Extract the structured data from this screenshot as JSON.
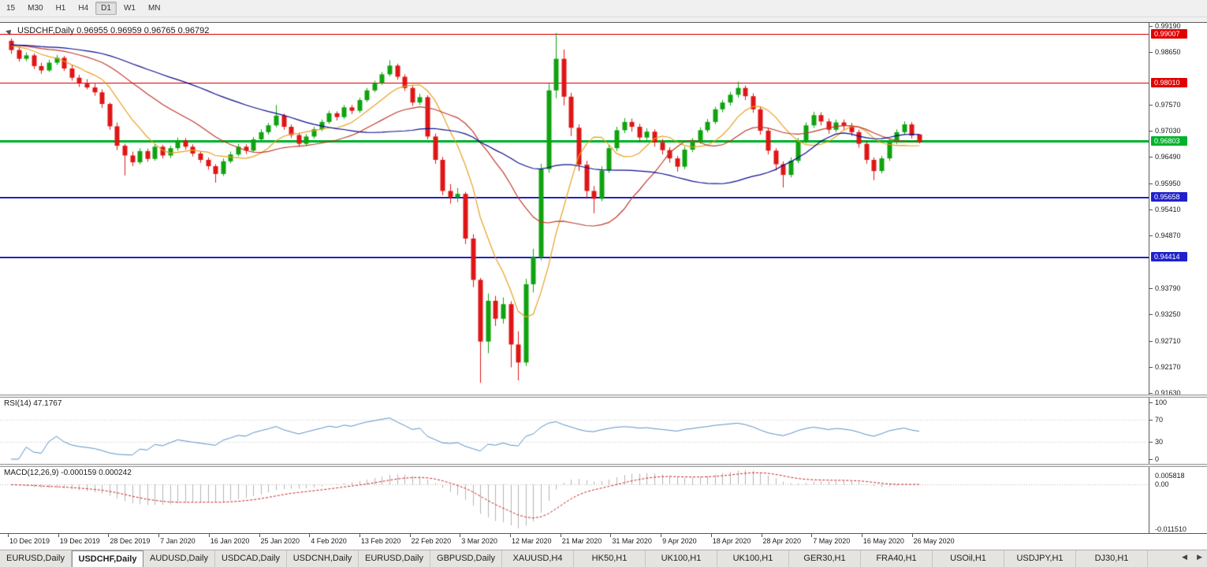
{
  "toolbar": {
    "timeframes": [
      "15",
      "M30",
      "H1",
      "H4",
      "D1",
      "W1",
      "MN"
    ],
    "active": "D1"
  },
  "chart": {
    "symbol_ohlc_label": "USDCHF,Daily 0.96955 0.96959 0.96765 0.96792"
  },
  "rsi_panel": {
    "label": "RSI(14) 47.1767",
    "axis_labels": [
      "100",
      "70",
      "30",
      "0"
    ],
    "guide_levels": [
      70,
      30
    ],
    "line_color": "#5a8fc8"
  },
  "macd_panel": {
    "label": "MACD(12,26,9) -0.000159 0.000242",
    "axis_top": "0.005818",
    "axis_zero": "0.00",
    "axis_bottom": "-0.011510",
    "histogram_color": "#b4b4b4",
    "signal_color": "#cc2020"
  },
  "tabs": {
    "items": [
      "EURUSD,Daily",
      "USDCHF,Daily",
      "AUDUSD,Daily",
      "USDCAD,Daily",
      "USDCNH,Daily",
      "EURUSD,Daily",
      "GBPUSD,Daily",
      "XAUUSD,H4",
      "HK50,H1",
      "UK100,H1",
      "UK100,H1",
      "GER30,H1",
      "FRA40,H1",
      "USOil,H1",
      "USDJPY,H1",
      "DJ30,H1"
    ],
    "active_index": 1,
    "scroll_left_icon": "◀",
    "scroll_right_icon": "▶"
  },
  "chart_data": {
    "type": "candlestick",
    "symbol": "USDCHF",
    "timeframe": "Daily",
    "last_ohlc": {
      "open": 0.96955,
      "high": 0.96959,
      "low": 0.96765,
      "close": 0.96792
    },
    "y_range": [
      0.916,
      0.9925
    ],
    "y_ticks": [
      "0.99190",
      "0.98650",
      "0.97570",
      "0.97030",
      "0.96490",
      "0.95950",
      "0.95410",
      "0.94870",
      "0.93790",
      "0.93250",
      "0.92710",
      "0.92170",
      "0.91630"
    ],
    "x_labels": [
      "10 Dec 2019",
      "19 Dec 2019",
      "28 Dec 2019",
      "7 Jan 2020",
      "16 Jan 2020",
      "25 Jan 2020",
      "4 Feb 2020",
      "13 Feb 2020",
      "22 Feb 2020",
      "3 Mar 2020",
      "12 Mar 2020",
      "21 Mar 2020",
      "31 Mar 2020",
      "9 Apr 2020",
      "18 Apr 2020",
      "28 Apr 2020",
      "7 May 2020",
      "16 May 2020",
      "26 May 2020"
    ],
    "horizontal_levels": [
      {
        "value": 0.99007,
        "label": "0.99007",
        "color": "#e00000",
        "width": 1
      },
      {
        "value": 0.9801,
        "label": "0.98010",
        "color": "#e00000",
        "width": 1
      },
      {
        "value": 0.96803,
        "label": "0.96803",
        "color": "#00b32c",
        "width": 3
      },
      {
        "value": 0.95658,
        "label": "0.95658",
        "color": "#2020cc",
        "width": 2
      },
      {
        "value": 0.94414,
        "label": "0.94414",
        "color": "#2020cc",
        "width": 2
      }
    ],
    "overlays": [
      {
        "name": "sma-fast",
        "period": 8,
        "color": "#e8a020"
      },
      {
        "name": "sma-mid",
        "period": 20,
        "color": "#c0392b"
      },
      {
        "name": "sma-slow",
        "period": 40,
        "color": "#0b0b8f"
      }
    ],
    "indicators": {
      "rsi": {
        "period": 14,
        "current": 47.1767
      },
      "macd": {
        "fast": 12,
        "slow": 26,
        "signal": 9,
        "current_macd": -0.000159,
        "current_signal": 0.000242
      }
    },
    "colors": {
      "bull": "#0fa30f",
      "bear": "#df1616",
      "background": "#ffffff"
    },
    "candles": [
      [
        0.9888,
        0.9893,
        0.9861,
        0.9869
      ],
      [
        0.9869,
        0.9876,
        0.9845,
        0.9851
      ],
      [
        0.9851,
        0.9864,
        0.9846,
        0.9858
      ],
      [
        0.9858,
        0.9862,
        0.983,
        0.9836
      ],
      [
        0.9836,
        0.9843,
        0.982,
        0.9827
      ],
      [
        0.9827,
        0.9849,
        0.9824,
        0.9843
      ],
      [
        0.9843,
        0.9859,
        0.9838,
        0.9853
      ],
      [
        0.9853,
        0.9857,
        0.9826,
        0.9831
      ],
      [
        0.9831,
        0.9838,
        0.9806,
        0.9812
      ],
      [
        0.9812,
        0.9818,
        0.9793,
        0.98
      ],
      [
        0.98,
        0.9809,
        0.9788,
        0.9792
      ],
      [
        0.9792,
        0.98,
        0.9775,
        0.9782
      ],
      [
        0.9782,
        0.9788,
        0.975,
        0.9758
      ],
      [
        0.9758,
        0.9761,
        0.9705,
        0.9712
      ],
      [
        0.9712,
        0.972,
        0.9663,
        0.9672
      ],
      [
        0.9672,
        0.9676,
        0.9611,
        0.9652
      ],
      [
        0.9652,
        0.966,
        0.963,
        0.9638
      ],
      [
        0.9638,
        0.9667,
        0.9634,
        0.9661
      ],
      [
        0.9661,
        0.9666,
        0.9639,
        0.9645
      ],
      [
        0.9645,
        0.9676,
        0.9641,
        0.967
      ],
      [
        0.967,
        0.9674,
        0.9646,
        0.9652
      ],
      [
        0.9652,
        0.9672,
        0.9647,
        0.9667
      ],
      [
        0.9667,
        0.9689,
        0.9662,
        0.9683
      ],
      [
        0.9683,
        0.9688,
        0.9664,
        0.967
      ],
      [
        0.967,
        0.9675,
        0.965,
        0.9656
      ],
      [
        0.9656,
        0.9661,
        0.9637,
        0.9643
      ],
      [
        0.9643,
        0.9648,
        0.9623,
        0.963
      ],
      [
        0.963,
        0.9634,
        0.9596,
        0.9614
      ],
      [
        0.9614,
        0.9646,
        0.961,
        0.964
      ],
      [
        0.964,
        0.966,
        0.9636,
        0.9654
      ],
      [
        0.9654,
        0.9676,
        0.965,
        0.967
      ],
      [
        0.967,
        0.9675,
        0.9655,
        0.9662
      ],
      [
        0.9662,
        0.969,
        0.9658,
        0.9685
      ],
      [
        0.9685,
        0.9706,
        0.9681,
        0.97
      ],
      [
        0.97,
        0.9719,
        0.9695,
        0.9714
      ],
      [
        0.9714,
        0.9756,
        0.971,
        0.9734
      ],
      [
        0.9734,
        0.9738,
        0.9705,
        0.9711
      ],
      [
        0.9711,
        0.9716,
        0.9688,
        0.9694
      ],
      [
        0.9694,
        0.9699,
        0.967,
        0.9676
      ],
      [
        0.9676,
        0.9696,
        0.9672,
        0.9691
      ],
      [
        0.9691,
        0.9711,
        0.9687,
        0.9706
      ],
      [
        0.9706,
        0.9726,
        0.9702,
        0.9721
      ],
      [
        0.9721,
        0.9744,
        0.9717,
        0.9739
      ],
      [
        0.9739,
        0.9743,
        0.9724,
        0.9731
      ],
      [
        0.9731,
        0.9756,
        0.9727,
        0.9751
      ],
      [
        0.9751,
        0.9756,
        0.9737,
        0.9744
      ],
      [
        0.9744,
        0.9771,
        0.974,
        0.9766
      ],
      [
        0.9766,
        0.9791,
        0.9762,
        0.9786
      ],
      [
        0.9786,
        0.9806,
        0.9782,
        0.9801
      ],
      [
        0.9801,
        0.9824,
        0.9797,
        0.9819
      ],
      [
        0.9819,
        0.9848,
        0.9815,
        0.9837
      ],
      [
        0.9837,
        0.9841,
        0.9808,
        0.9814
      ],
      [
        0.9814,
        0.9819,
        0.9785,
        0.9791
      ],
      [
        0.9791,
        0.9796,
        0.9754,
        0.9761
      ],
      [
        0.9761,
        0.9779,
        0.9756,
        0.9772
      ],
      [
        0.9772,
        0.9776,
        0.9685,
        0.9691
      ],
      [
        0.9691,
        0.9697,
        0.9635,
        0.9643
      ],
      [
        0.9643,
        0.9649,
        0.957,
        0.9579
      ],
      [
        0.9579,
        0.9593,
        0.9553,
        0.9566
      ],
      [
        0.9566,
        0.9585,
        0.9556,
        0.9573
      ],
      [
        0.9573,
        0.9577,
        0.947,
        0.9481
      ],
      [
        0.9481,
        0.949,
        0.9381,
        0.9396
      ],
      [
        0.9396,
        0.94,
        0.9184,
        0.9269
      ],
      [
        0.9269,
        0.9368,
        0.9245,
        0.9353
      ],
      [
        0.9353,
        0.9363,
        0.9301,
        0.9316
      ],
      [
        0.9316,
        0.936,
        0.9306,
        0.9346
      ],
      [
        0.9346,
        0.9352,
        0.9216,
        0.9263
      ],
      [
        0.9263,
        0.929,
        0.9189,
        0.9226
      ],
      [
        0.9226,
        0.9398,
        0.9219,
        0.9387
      ],
      [
        0.9387,
        0.946,
        0.937,
        0.9443
      ],
      [
        0.9443,
        0.9635,
        0.9436,
        0.9624
      ],
      [
        0.9624,
        0.98,
        0.9616,
        0.9786
      ],
      [
        0.9786,
        0.9904,
        0.977,
        0.9851
      ],
      [
        0.9851,
        0.987,
        0.9755,
        0.9773
      ],
      [
        0.9773,
        0.9781,
        0.9692,
        0.9709
      ],
      [
        0.9709,
        0.9716,
        0.962,
        0.9633
      ],
      [
        0.9633,
        0.9641,
        0.9565,
        0.9579
      ],
      [
        0.9579,
        0.9589,
        0.9533,
        0.9563
      ],
      [
        0.9563,
        0.963,
        0.9558,
        0.9621
      ],
      [
        0.9621,
        0.9674,
        0.9616,
        0.9667
      ],
      [
        0.9667,
        0.9711,
        0.9661,
        0.9704
      ],
      [
        0.9704,
        0.9729,
        0.9698,
        0.9721
      ],
      [
        0.9721,
        0.9728,
        0.9701,
        0.9711
      ],
      [
        0.9711,
        0.9717,
        0.968,
        0.9689
      ],
      [
        0.9689,
        0.9708,
        0.9683,
        0.9701
      ],
      [
        0.9701,
        0.9706,
        0.967,
        0.9679
      ],
      [
        0.9679,
        0.9686,
        0.9654,
        0.9663
      ],
      [
        0.9663,
        0.9669,
        0.9637,
        0.9646
      ],
      [
        0.9646,
        0.9651,
        0.9619,
        0.9629
      ],
      [
        0.9629,
        0.967,
        0.9624,
        0.9664
      ],
      [
        0.9664,
        0.9688,
        0.9659,
        0.9681
      ],
      [
        0.9681,
        0.971,
        0.9676,
        0.9704
      ],
      [
        0.9704,
        0.9727,
        0.9699,
        0.9721
      ],
      [
        0.9721,
        0.9752,
        0.9716,
        0.9747
      ],
      [
        0.9747,
        0.9766,
        0.9741,
        0.9761
      ],
      [
        0.9761,
        0.9783,
        0.9755,
        0.9777
      ],
      [
        0.9777,
        0.9804,
        0.9771,
        0.9791
      ],
      [
        0.9791,
        0.9796,
        0.9766,
        0.9774
      ],
      [
        0.9774,
        0.978,
        0.974,
        0.9747
      ],
      [
        0.9747,
        0.9752,
        0.9695,
        0.9703
      ],
      [
        0.9703,
        0.9708,
        0.9654,
        0.9662
      ],
      [
        0.9662,
        0.9667,
        0.9621,
        0.9634
      ],
      [
        0.9634,
        0.964,
        0.9586,
        0.9612
      ],
      [
        0.9612,
        0.9648,
        0.9607,
        0.9641
      ],
      [
        0.9641,
        0.9688,
        0.9636,
        0.9682
      ],
      [
        0.9682,
        0.972,
        0.9677,
        0.9714
      ],
      [
        0.9714,
        0.9742,
        0.9709,
        0.9735
      ],
      [
        0.9735,
        0.9741,
        0.9714,
        0.9722
      ],
      [
        0.9722,
        0.9728,
        0.9697,
        0.9705
      ],
      [
        0.9705,
        0.9726,
        0.97,
        0.972
      ],
      [
        0.972,
        0.9726,
        0.9705,
        0.9713
      ],
      [
        0.9713,
        0.9719,
        0.9692,
        0.97
      ],
      [
        0.97,
        0.9705,
        0.9668,
        0.9676
      ],
      [
        0.9676,
        0.9681,
        0.9635,
        0.9643
      ],
      [
        0.9643,
        0.9648,
        0.9601,
        0.962
      ],
      [
        0.962,
        0.9651,
        0.9615,
        0.9646
      ],
      [
        0.9646,
        0.9686,
        0.9641,
        0.968
      ],
      [
        0.968,
        0.9706,
        0.9675,
        0.97
      ],
      [
        0.97,
        0.9722,
        0.9695,
        0.9716
      ],
      [
        0.9716,
        0.9721,
        0.9687,
        0.9693
      ],
      [
        0.96955,
        0.96959,
        0.96765,
        0.96792
      ]
    ]
  }
}
